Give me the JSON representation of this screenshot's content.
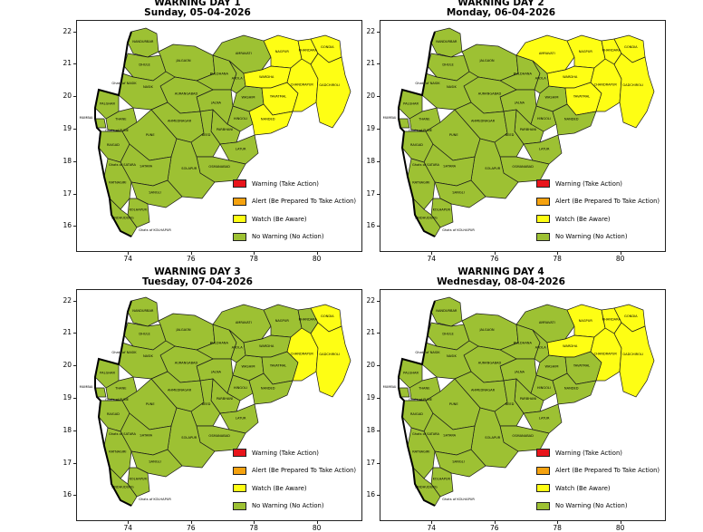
{
  "colors": {
    "warning": "#e8141b",
    "alert": "#f5a20f",
    "watch": "#fefe14",
    "no_warning": "#9dc133",
    "border": "#1a1a1a"
  },
  "axes": {
    "x_ticks": [
      "74",
      "76",
      "78",
      "80"
    ],
    "y_ticks": [
      "22",
      "21",
      "20",
      "19",
      "18",
      "17",
      "16"
    ]
  },
  "legend": [
    {
      "level": "warning",
      "label": "Warning (Take Action)"
    },
    {
      "level": "alert",
      "label": "Alert (Be Prepared To Take Action)"
    },
    {
      "level": "watch",
      "label": "Watch (Be Aware)"
    },
    {
      "level": "no_warning",
      "label": "No Warning (No Action)"
    }
  ],
  "district_labels": [
    "NANDURBAR",
    "DHULE",
    "JALGAON",
    "BULDHANA",
    "AMRAVATI",
    "NAGPUR",
    "BHANDARA",
    "GONDIA",
    "WARDHA",
    "AKOLA",
    "WASHIM",
    "YAVATMAL",
    "CHANDRAPUR",
    "GADCHIROLI",
    "HINGOLI",
    "NANDED",
    "PARBHANI",
    "JALNA",
    "AURANGABAD",
    "NASIK",
    "PALGHAR",
    "MUMBAI",
    "THANE",
    "RAIGAD",
    "PUNE",
    "AHMEDNAGAR",
    "BEED",
    "LATUR",
    "OSMANABAD",
    "SOLAPUR",
    "SATARA",
    "SANGLI",
    "RATNAGIRI",
    "SINDHUDURG",
    "KOLHAPUR",
    "Ghats of NASIK",
    "Ghats of PUNE",
    "Ghats of SATARA",
    "Ghats of KOLHAPUR"
  ],
  "panels": [
    {
      "title": "WARNING DAY 1",
      "subtitle": "Sunday, 05-04-2026",
      "watch_districts": [
        "NAGPUR",
        "BHANDARA",
        "GONDIA",
        "WARDHA",
        "CHANDRAPUR",
        "GADCHIROLI",
        "YAVATMAL",
        "NANDED"
      ]
    },
    {
      "title": "WARNING DAY 2",
      "subtitle": "Monday, 06-04-2026",
      "watch_districts": [
        "AMRAVATI",
        "NAGPUR",
        "BHANDARA",
        "GONDIA",
        "WARDHA",
        "CHANDRAPUR",
        "GADCHIROLI",
        "YAVATMAL"
      ]
    },
    {
      "title": "WARNING DAY 3",
      "subtitle": "Tuesday, 07-04-2026",
      "watch_districts": [
        "GONDIA",
        "GADCHIROLI",
        "CHANDRAPUR"
      ]
    },
    {
      "title": "WARNING DAY 4",
      "subtitle": "Wednesday, 08-04-2026",
      "watch_districts": [
        "NAGPUR",
        "BHANDARA",
        "GONDIA",
        "WARDHA",
        "CHANDRAPUR",
        "GADCHIROLI"
      ]
    }
  ]
}
